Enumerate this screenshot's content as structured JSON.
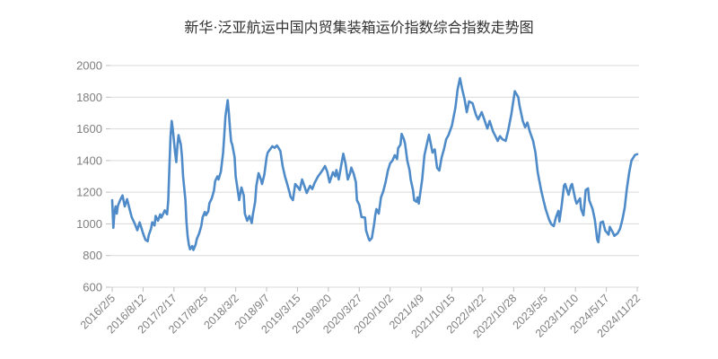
{
  "chart_data": {
    "type": "line",
    "title": "新华·泛亚航运中国内贸集装箱运价指数综合指数走势图",
    "xlabel": "",
    "ylabel": "",
    "ylim": [
      600,
      2000
    ],
    "y_ticks": [
      600,
      800,
      1000,
      1200,
      1400,
      1600,
      1800,
      2000
    ],
    "x_tick_labels": [
      "2016/2/5",
      "2016/8/12",
      "2017/2/17",
      "2017/8/25",
      "2018/3/2",
      "2018/9/7",
      "2019/3/15",
      "2019/9/20",
      "2020/3/27",
      "2020/10/2",
      "2021/4/9",
      "2021/10/15",
      "2022/4/22",
      "2022/10/28",
      "2023/5/5",
      "2023/11/10",
      "2024/5/17",
      "2024/11/22"
    ],
    "x_total_weeks": 459,
    "weeks_per_x_label": 27,
    "grid": "horizontal",
    "legend_position": "none",
    "colors": {
      "line": "#4e8bc8",
      "grid": "#d9d9d9",
      "tick": "#bfbfbf",
      "axis_label": "#7f7f7f",
      "title": "#333333",
      "background": "#ffffff"
    },
    "series": [
      {
        "name": "综合指数",
        "color": "#4e8bc8",
        "points": [
          [
            0,
            1150
          ],
          [
            1,
            975
          ],
          [
            2,
            1071
          ],
          [
            3,
            1110
          ],
          [
            4,
            1065
          ],
          [
            5,
            1115
          ],
          [
            7,
            1150
          ],
          [
            9,
            1180
          ],
          [
            11,
            1110
          ],
          [
            13,
            1156
          ],
          [
            15,
            1100
          ],
          [
            17,
            1043
          ],
          [
            20,
            997
          ],
          [
            22,
            960
          ],
          [
            24,
            1010
          ],
          [
            27,
            940
          ],
          [
            29,
            900
          ],
          [
            31,
            890
          ],
          [
            32,
            930
          ],
          [
            34,
            970
          ],
          [
            35,
            1010
          ],
          [
            37,
            990
          ],
          [
            38,
            1050
          ],
          [
            40,
            1020
          ],
          [
            42,
            1060
          ],
          [
            43,
            1040
          ],
          [
            45,
            1070
          ],
          [
            46,
            1085
          ],
          [
            48,
            1060
          ],
          [
            49,
            1150
          ],
          [
            50,
            1350
          ],
          [
            51,
            1550
          ],
          [
            52,
            1650
          ],
          [
            53,
            1600
          ],
          [
            55,
            1450
          ],
          [
            56,
            1390
          ],
          [
            57,
            1490
          ],
          [
            58,
            1560
          ],
          [
            60,
            1500
          ],
          [
            61,
            1430
          ],
          [
            62,
            1300
          ],
          [
            64,
            1150
          ],
          [
            65,
            1010
          ],
          [
            66,
            920
          ],
          [
            67,
            870
          ],
          [
            68,
            840
          ],
          [
            70,
            860
          ],
          [
            71,
            835
          ],
          [
            73,
            870
          ],
          [
            74,
            905
          ],
          [
            76,
            940
          ],
          [
            78,
            990
          ],
          [
            79,
            1040
          ],
          [
            81,
            1075
          ],
          [
            82,
            1055
          ],
          [
            84,
            1080
          ],
          [
            85,
            1130
          ],
          [
            87,
            1160
          ],
          [
            89,
            1210
          ],
          [
            90,
            1270
          ],
          [
            92,
            1300
          ],
          [
            93,
            1280
          ],
          [
            95,
            1330
          ],
          [
            97,
            1450
          ],
          [
            98,
            1560
          ],
          [
            99,
            1680
          ],
          [
            101,
            1781
          ],
          [
            102,
            1700
          ],
          [
            103,
            1600
          ],
          [
            104,
            1520
          ],
          [
            105,
            1500
          ],
          [
            107,
            1420
          ],
          [
            108,
            1300
          ],
          [
            110,
            1200
          ],
          [
            111,
            1150
          ],
          [
            113,
            1230
          ],
          [
            115,
            1180
          ],
          [
            116,
            1065
          ],
          [
            118,
            1020
          ],
          [
            120,
            1050
          ],
          [
            122,
            1005
          ],
          [
            123,
            1060
          ],
          [
            125,
            1140
          ],
          [
            126,
            1240
          ],
          [
            128,
            1320
          ],
          [
            130,
            1280
          ],
          [
            131,
            1252
          ],
          [
            133,
            1310
          ],
          [
            135,
            1422
          ],
          [
            136,
            1450
          ],
          [
            138,
            1470
          ],
          [
            140,
            1490
          ],
          [
            142,
            1480
          ],
          [
            144,
            1495
          ],
          [
            145,
            1485
          ],
          [
            147,
            1460
          ],
          [
            149,
            1365
          ],
          [
            151,
            1300
          ],
          [
            153,
            1252
          ],
          [
            155,
            1200
          ],
          [
            156,
            1170
          ],
          [
            158,
            1150
          ],
          [
            160,
            1252
          ],
          [
            162,
            1235
          ],
          [
            164,
            1214
          ],
          [
            166,
            1280
          ],
          [
            168,
            1240
          ],
          [
            170,
            1195
          ],
          [
            173,
            1240
          ],
          [
            175,
            1220
          ],
          [
            177,
            1260
          ],
          [
            180,
            1300
          ],
          [
            182,
            1320
          ],
          [
            184,
            1340
          ],
          [
            186,
            1365
          ],
          [
            188,
            1330
          ],
          [
            190,
            1262
          ],
          [
            193,
            1326
          ],
          [
            195,
            1300
          ],
          [
            196,
            1340
          ],
          [
            198,
            1280
          ],
          [
            200,
            1360
          ],
          [
            202,
            1443
          ],
          [
            204,
            1380
          ],
          [
            206,
            1280
          ],
          [
            208,
            1320
          ],
          [
            209,
            1355
          ],
          [
            211,
            1320
          ],
          [
            213,
            1263
          ],
          [
            214,
            1150
          ],
          [
            216,
            1120
          ],
          [
            218,
            1043
          ],
          [
            221,
            1040
          ],
          [
            222,
            958
          ],
          [
            224,
            912
          ],
          [
            225,
            895
          ],
          [
            227,
            910
          ],
          [
            229,
            1000
          ],
          [
            230,
            1054
          ],
          [
            231,
            1093
          ],
          [
            233,
            1065
          ],
          [
            235,
            1167
          ],
          [
            237,
            1207
          ],
          [
            239,
            1263
          ],
          [
            241,
            1337
          ],
          [
            243,
            1382
          ],
          [
            245,
            1400
          ],
          [
            247,
            1433
          ],
          [
            249,
            1410
          ],
          [
            250,
            1478
          ],
          [
            252,
            1500
          ],
          [
            253,
            1568
          ],
          [
            255,
            1535
          ],
          [
            256,
            1507
          ],
          [
            258,
            1400
          ],
          [
            260,
            1337
          ],
          [
            261,
            1280
          ],
          [
            263,
            1212
          ],
          [
            264,
            1150
          ],
          [
            266,
            1139
          ],
          [
            267,
            1167
          ],
          [
            268,
            1128
          ],
          [
            271,
            1280
          ],
          [
            273,
            1433
          ],
          [
            275,
            1500
          ],
          [
            277,
            1563
          ],
          [
            280,
            1450
          ],
          [
            282,
            1470
          ],
          [
            284,
            1354
          ],
          [
            286,
            1337
          ],
          [
            288,
            1420
          ],
          [
            290,
            1470
          ],
          [
            292,
            1535
          ],
          [
            294,
            1560
          ],
          [
            297,
            1620
          ],
          [
            300,
            1733
          ],
          [
            302,
            1850
          ],
          [
            304,
            1920
          ],
          [
            306,
            1850
          ],
          [
            308,
            1790
          ],
          [
            310,
            1705
          ],
          [
            312,
            1773
          ],
          [
            315,
            1762
          ],
          [
            318,
            1688
          ],
          [
            320,
            1660
          ],
          [
            323,
            1705
          ],
          [
            325,
            1666
          ],
          [
            328,
            1602
          ],
          [
            330,
            1650
          ],
          [
            333,
            1583
          ],
          [
            335,
            1554
          ],
          [
            337,
            1524
          ],
          [
            339,
            1554
          ],
          [
            341,
            1535
          ],
          [
            344,
            1524
          ],
          [
            346,
            1583
          ],
          [
            349,
            1694
          ],
          [
            352,
            1838
          ],
          [
            355,
            1800
          ],
          [
            356,
            1752
          ],
          [
            359,
            1650
          ],
          [
            361,
            1610
          ],
          [
            363,
            1640
          ],
          [
            365,
            1585
          ],
          [
            368,
            1524
          ],
          [
            370,
            1450
          ],
          [
            372,
            1326
          ],
          [
            375,
            1214
          ],
          [
            377,
            1150
          ],
          [
            379,
            1093
          ],
          [
            382,
            1025
          ],
          [
            384,
            997
          ],
          [
            386,
            986
          ],
          [
            388,
            1043
          ],
          [
            390,
            1082
          ],
          [
            391,
            1015
          ],
          [
            393,
            1120
          ],
          [
            395,
            1241
          ],
          [
            396,
            1252
          ],
          [
            399,
            1184
          ],
          [
            401,
            1241
          ],
          [
            402,
            1252
          ],
          [
            405,
            1150
          ],
          [
            406,
            1128
          ],
          [
            409,
            1161
          ],
          [
            410,
            1093
          ],
          [
            412,
            1054
          ],
          [
            414,
            1214
          ],
          [
            416,
            1224
          ],
          [
            417,
            1150
          ],
          [
            420,
            1093
          ],
          [
            422,
            1025
          ],
          [
            424,
            901
          ],
          [
            425,
            884
          ],
          [
            427,
            1008
          ],
          [
            429,
            1015
          ],
          [
            431,
            958
          ],
          [
            434,
            932
          ],
          [
            435,
            981
          ],
          [
            438,
            941
          ],
          [
            439,
            924
          ],
          [
            442,
            941
          ],
          [
            444,
            970
          ],
          [
            446,
            1025
          ],
          [
            448,
            1100
          ],
          [
            450,
            1224
          ],
          [
            452,
            1326
          ],
          [
            454,
            1400
          ],
          [
            457,
            1435
          ],
          [
            459,
            1440
          ]
        ]
      }
    ]
  }
}
